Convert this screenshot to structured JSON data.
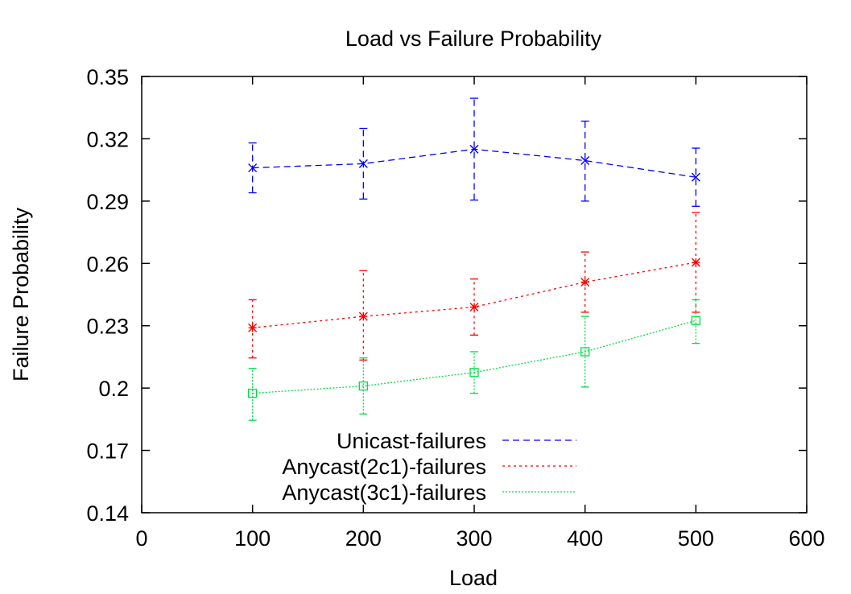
{
  "chart_data": {
    "type": "line",
    "title": "Load vs Failure Probability",
    "xlabel": "Load",
    "ylabel": "Failure Probability",
    "xlim": [
      0,
      600
    ],
    "ylim": [
      0.14,
      0.35
    ],
    "xticks": [
      0,
      100,
      200,
      300,
      400,
      500,
      600
    ],
    "xtick_labels": [
      "0",
      "100",
      "200",
      "300",
      "400",
      "500",
      "600"
    ],
    "yticks": [
      0.14,
      0.17,
      0.2,
      0.23,
      0.26,
      0.29,
      0.32,
      0.35
    ],
    "ytick_labels": [
      "0.14",
      "0.17",
      "0.2",
      "0.23",
      "0.26",
      "0.29",
      "0.32",
      "0.35"
    ],
    "grid": false,
    "legend_position": "bottom-center",
    "x": [
      100,
      200,
      300,
      400,
      500
    ],
    "series": [
      {
        "name": "Unicast-failures",
        "color": "#0000ff",
        "dash": "dashed",
        "marker": "x",
        "values": [
          0.306,
          0.308,
          0.315,
          0.3095,
          0.3015
        ],
        "err_low": [
          0.294,
          0.291,
          0.2905,
          0.29,
          0.2875
        ],
        "err_high": [
          0.318,
          0.325,
          0.3395,
          0.3285,
          0.3155
        ]
      },
      {
        "name": "Anycast(2c1)-failures",
        "color": "#ff0000",
        "dash": "dotted",
        "marker": "star",
        "values": [
          0.229,
          0.2345,
          0.239,
          0.251,
          0.2605
        ],
        "err_low": [
          0.2145,
          0.2135,
          0.2255,
          0.2365,
          0.2365
        ],
        "err_high": [
          0.2425,
          0.2565,
          0.2525,
          0.2655,
          0.2845
        ]
      },
      {
        "name": "Anycast(3c1)-failures",
        "color": "#00dd44",
        "dash": "dense-dotted",
        "marker": "square",
        "values": [
          0.1975,
          0.201,
          0.2075,
          0.2175,
          0.2325
        ],
        "err_low": [
          0.1845,
          0.1875,
          0.1975,
          0.2005,
          0.2215
        ],
        "err_high": [
          0.2095,
          0.2145,
          0.2175,
          0.2345,
          0.2425
        ]
      }
    ]
  }
}
